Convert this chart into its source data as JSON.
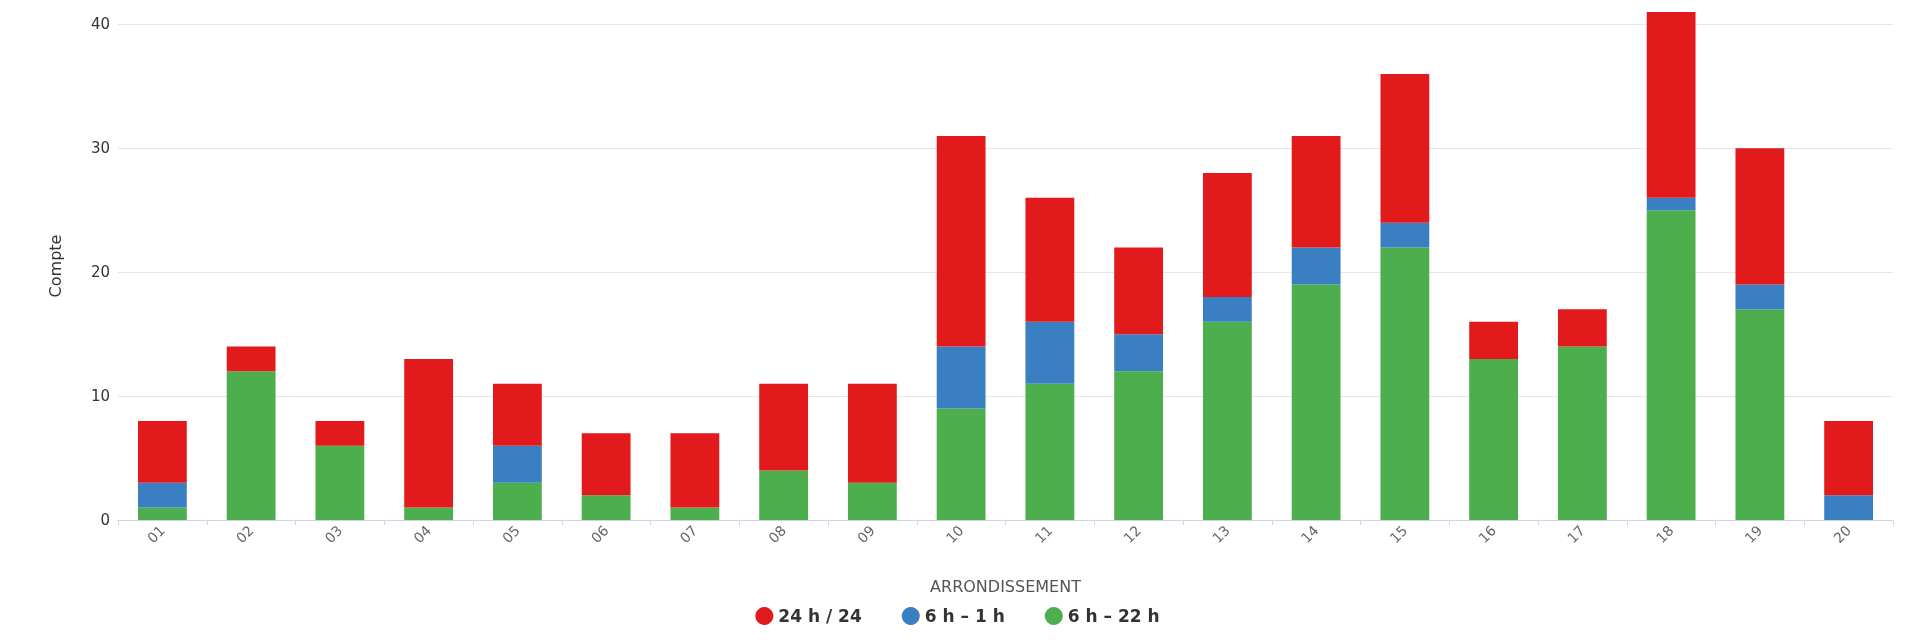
{
  "chart_data": {
    "type": "bar",
    "stacked": true,
    "xlabel": "ARRONDISSEMENT",
    "ylabel": "Compte",
    "categories": [
      "01",
      "02",
      "03",
      "04",
      "05",
      "06",
      "07",
      "08",
      "09",
      "10",
      "11",
      "12",
      "13",
      "14",
      "15",
      "16",
      "17",
      "18",
      "19",
      "20"
    ],
    "series": [
      {
        "name": "6 h – 22 h",
        "color": "#4cae4c",
        "values": [
          1,
          12,
          6,
          1,
          3,
          2,
          1,
          4,
          3,
          9,
          11,
          12,
          16,
          19,
          22,
          13,
          14,
          25,
          17,
          0
        ]
      },
      {
        "name": "6 h – 1 h",
        "color": "#3a7fc1",
        "values": [
          2,
          0,
          0,
          0,
          3,
          0,
          0,
          0,
          0,
          5,
          5,
          3,
          2,
          3,
          2,
          0,
          0,
          1,
          2,
          2
        ]
      },
      {
        "name": "24 h / 24",
        "color": "#e31a1c",
        "values": [
          5,
          2,
          2,
          12,
          5,
          5,
          6,
          7,
          8,
          17,
          10,
          7,
          10,
          9,
          12,
          3,
          3,
          15,
          11,
          6
        ]
      }
    ],
    "ylim": [
      0,
      41
    ],
    "yticks": [
      0,
      10,
      20,
      30,
      40
    ],
    "grid": "y",
    "legend": "bottom"
  }
}
